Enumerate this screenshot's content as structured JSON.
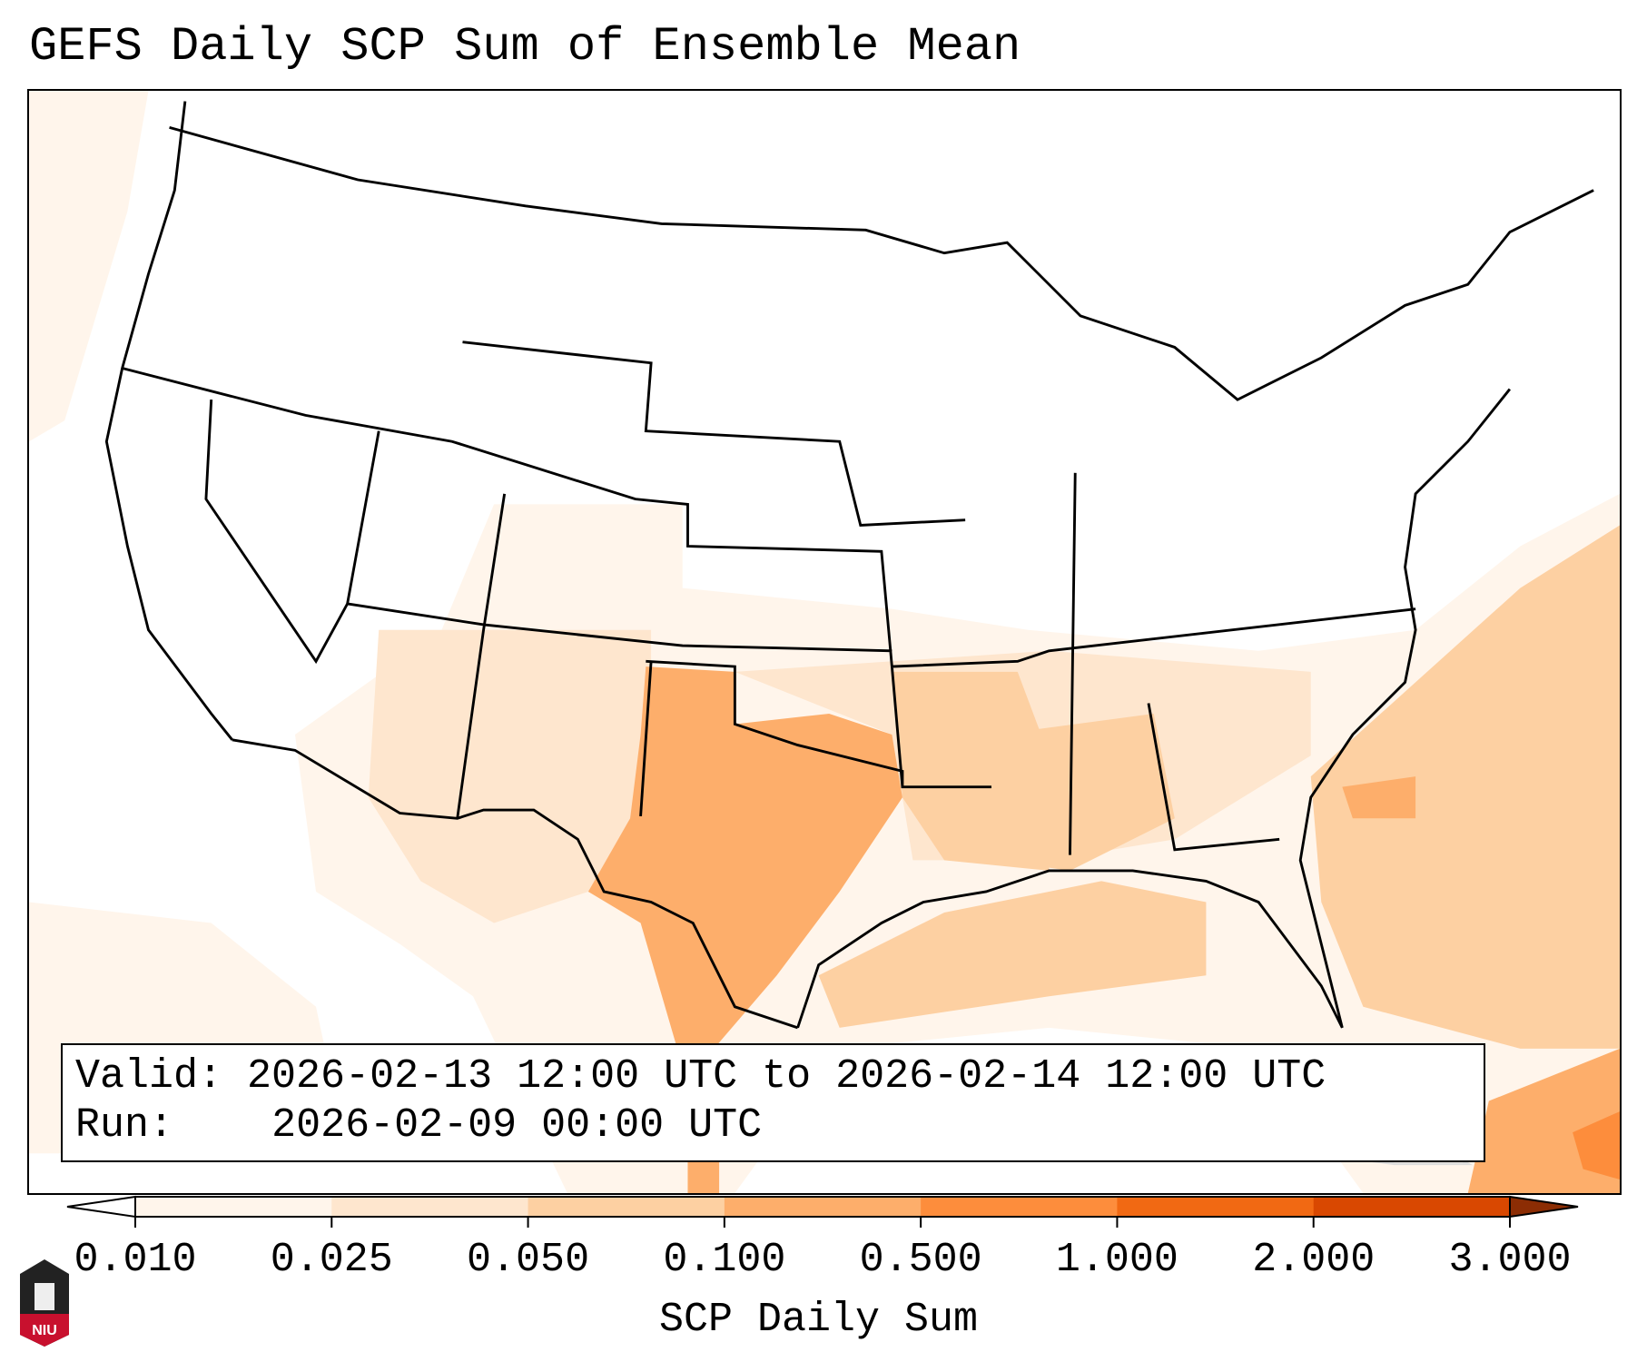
{
  "title": "GEFS Daily SCP Sum of Ensemble Mean",
  "info": {
    "valid_label": "Valid:",
    "valid_value": "2026-02-13 12:00 UTC to 2026-02-14 12:00 UTC",
    "run_label": "Run:",
    "run_value": "2026-02-09 00:00 UTC"
  },
  "colorbar": {
    "label": "SCP Daily Sum",
    "ticks": [
      "0.010",
      "0.025",
      "0.050",
      "0.100",
      "0.500",
      "1.000",
      "2.000",
      "3.000"
    ],
    "colors": [
      "#fff5eb",
      "#fee6ce",
      "#fdd0a2",
      "#fdae6b",
      "#fd8d3c",
      "#f16913",
      "#d94801",
      "#8c2d04"
    ],
    "under_color": "#ffffff",
    "extend": "both"
  },
  "logo": {
    "text": "NIU"
  }
}
